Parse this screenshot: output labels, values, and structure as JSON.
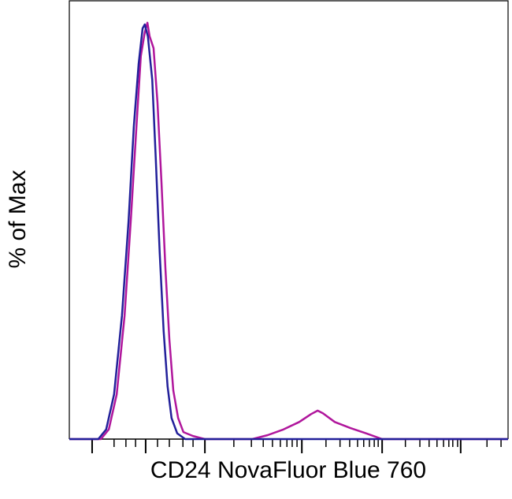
{
  "chart_data": {
    "type": "line",
    "x_label": "CD24 NovaFluor Blue 760",
    "y_label": "% of Max",
    "xlim": [
      0,
      100
    ],
    "ylim": [
      0,
      100
    ],
    "xticks": [
      5.2,
      17.4,
      30.9,
      53.0,
      71.3,
      89.2
    ],
    "xminor": [
      10.2,
      12.9,
      15.1,
      20.1,
      22.8,
      25.9,
      28.2,
      37.5,
      41.5,
      44.2,
      46.3,
      48.1,
      49.6,
      50.8,
      51.9,
      58.5,
      61.7,
      63.9,
      65.7,
      67.1,
      68.4,
      69.5,
      70.4,
      76.6,
      79.9,
      82.0,
      83.8,
      85.3,
      86.5,
      87.4,
      88.5,
      95.2,
      98.4
    ],
    "series": [
      {
        "color": "#b0169c",
        "x": [
          0,
          7.2,
          9.0,
          10.8,
          12.6,
          14.0,
          15.3,
          16.3,
          17.2,
          17.8,
          18.3,
          19.2,
          20.1,
          21.0,
          21.9,
          22.8,
          23.7,
          24.8,
          26.0,
          28.2,
          30.9,
          41.7,
          45.2,
          48.8,
          52.4,
          55.1,
          56.6,
          57.8,
          60.5,
          64.1,
          67.7,
          71.3,
          100
        ],
        "values": [
          0,
          0,
          2.2,
          10.2,
          28.2,
          49.7,
          71.3,
          87.4,
          92.8,
          95.0,
          91.9,
          89.2,
          76.7,
          58.7,
          39.0,
          22.8,
          11.1,
          4.8,
          1.6,
          0.7,
          0,
          0,
          0.9,
          2.2,
          3.9,
          5.7,
          6.5,
          5.9,
          3.9,
          2.5,
          1.3,
          0,
          0
        ]
      },
      {
        "color": "#22209a",
        "x": [
          0,
          6.6,
          8.4,
          10.2,
          12.0,
          13.5,
          14.7,
          15.8,
          16.7,
          17.2,
          17.9,
          18.9,
          19.7,
          20.6,
          21.5,
          22.4,
          23.3,
          24.6,
          26.4,
          100
        ],
        "values": [
          0,
          0,
          2.2,
          10.2,
          28.2,
          49.7,
          71.3,
          85.6,
          93.7,
          94.6,
          91.9,
          82.0,
          64.1,
          42.5,
          24.6,
          12.0,
          4.8,
          1.3,
          0,
          0
        ]
      }
    ]
  }
}
